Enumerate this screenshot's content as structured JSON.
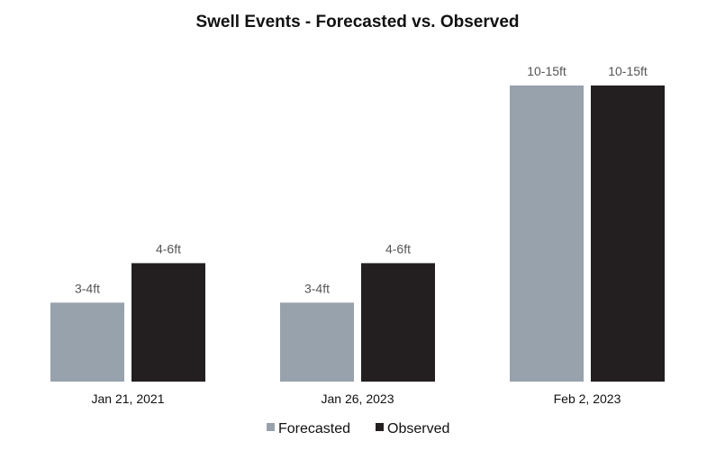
{
  "chart_data": {
    "type": "bar",
    "title": "Swell Events - Forecasted vs. Observed",
    "xlabel": "",
    "ylabel": "",
    "categories": [
      "Jan 21, 2021",
      "Jan 26, 2023",
      "Feb 2, 2023"
    ],
    "series": [
      {
        "name": "Forecasted",
        "color": "#98a2ad",
        "values": [
          4,
          4,
          15
        ],
        "labels": [
          "3-4ft",
          "3-4ft",
          "10-15ft"
        ]
      },
      {
        "name": "Observed",
        "color": "#231f20",
        "values": [
          6,
          6,
          15
        ],
        "labels": [
          "4-6ft",
          "4-6ft",
          "10-15ft"
        ]
      }
    ],
    "ylim": [
      0,
      15
    ],
    "grid": false,
    "legend": "bottom-center"
  }
}
